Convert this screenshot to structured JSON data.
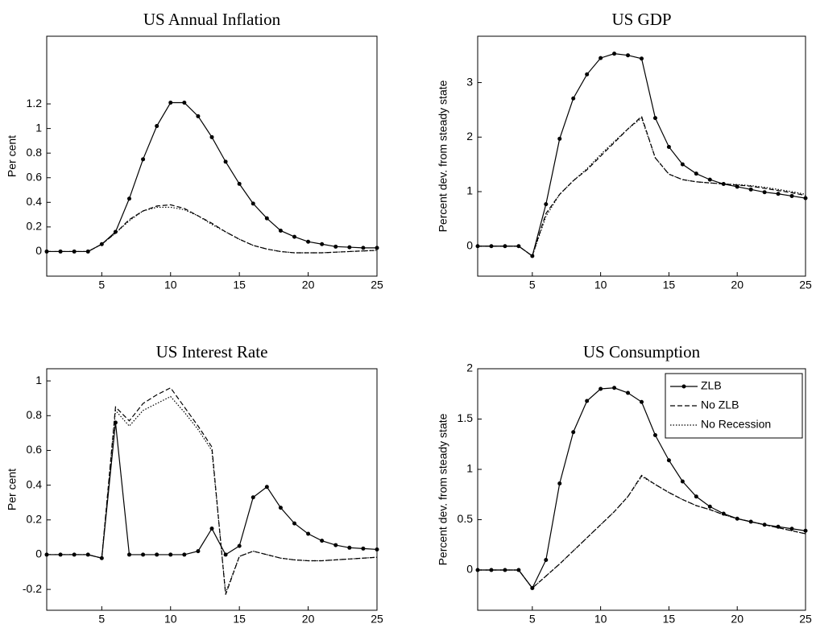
{
  "chart_data": [
    {
      "type": "line",
      "title": "US Annual Inflation",
      "ylabel": "Per cent",
      "x": [
        1,
        2,
        3,
        4,
        5,
        6,
        7,
        8,
        9,
        10,
        11,
        12,
        13,
        14,
        15,
        16,
        17,
        18,
        19,
        20,
        21,
        22,
        23,
        24,
        25
      ],
      "xlim": [
        1,
        25
      ],
      "xticks": [
        5,
        10,
        15,
        20,
        25
      ],
      "ylim": [
        -0.2,
        1.75
      ],
      "yticks": [
        0,
        0.2,
        0.4,
        0.6,
        0.8,
        1,
        1.2
      ],
      "series": [
        {
          "color": "#000000",
          "dash": "solid",
          "marker": true,
          "values": [
            0,
            0,
            0,
            0,
            0.06,
            0.16,
            0.43,
            0.75,
            1.02,
            1.21,
            1.21,
            1.1,
            0.93,
            0.73,
            0.55,
            0.39,
            0.27,
            0.17,
            0.12,
            0.08,
            0.06,
            0.04,
            0.035,
            0.03,
            0.03
          ]
        },
        {
          "color": "#000000",
          "dash": "dashed",
          "marker": false,
          "values": [
            0,
            0,
            0,
            0,
            0.06,
            0.15,
            0.26,
            0.33,
            0.37,
            0.38,
            0.35,
            0.29,
            0.23,
            0.16,
            0.1,
            0.05,
            0.02,
            0,
            -0.01,
            -0.01,
            -0.01,
            -0.005,
            0,
            0.005,
            0.01
          ]
        },
        {
          "color": "#000000",
          "dash": "dotted",
          "marker": false,
          "values": [
            0,
            0,
            0,
            0,
            0.06,
            0.15,
            0.25,
            0.33,
            0.36,
            0.36,
            0.34,
            0.29,
            0.22,
            0.16,
            0.1,
            0.05,
            0.02,
            0,
            -0.01,
            -0.01,
            -0.01,
            -0.005,
            0,
            0.005,
            0.01
          ]
        }
      ]
    },
    {
      "type": "line",
      "title": "US GDP",
      "ylabel": "Percent dev. from steady state",
      "x": [
        1,
        2,
        3,
        4,
        5,
        6,
        7,
        8,
        9,
        10,
        11,
        12,
        13,
        14,
        15,
        16,
        17,
        18,
        19,
        20,
        21,
        22,
        23,
        24,
        25
      ],
      "xlim": [
        1,
        25
      ],
      "xticks": [
        5,
        10,
        15,
        20,
        25
      ],
      "ylim": [
        -0.55,
        3.85
      ],
      "yticks": [
        0,
        1,
        2,
        3
      ],
      "series": [
        {
          "color": "#000000",
          "dash": "solid",
          "marker": true,
          "values": [
            0,
            0,
            0,
            0,
            -0.18,
            0.77,
            1.97,
            2.71,
            3.15,
            3.45,
            3.53,
            3.5,
            3.44,
            2.35,
            1.82,
            1.5,
            1.33,
            1.22,
            1.14,
            1.09,
            1.04,
            0.99,
            0.96,
            0.92,
            0.88
          ]
        },
        {
          "color": "#000000",
          "dash": "dashed",
          "marker": false,
          "values": [
            0,
            0,
            0,
            0,
            -0.18,
            0.6,
            0.95,
            1.2,
            1.4,
            1.65,
            1.9,
            2.15,
            2.38,
            1.62,
            1.32,
            1.22,
            1.18,
            1.16,
            1.14,
            1.12,
            1.1,
            1.06,
            1.02,
            0.98,
            0.93
          ]
        },
        {
          "color": "#000000",
          "dash": "dotted",
          "marker": false,
          "values": [
            0,
            0,
            0,
            0,
            -0.18,
            0.55,
            0.95,
            1.2,
            1.42,
            1.68,
            1.92,
            2.15,
            2.35,
            1.62,
            1.32,
            1.22,
            1.18,
            1.16,
            1.14,
            1.13,
            1.11,
            1.08,
            1.04,
            1,
            0.95
          ]
        }
      ]
    },
    {
      "type": "line",
      "title": "US Interest Rate",
      "ylabel": "Per cent",
      "x": [
        1,
        2,
        3,
        4,
        5,
        6,
        7,
        8,
        9,
        10,
        11,
        12,
        13,
        14,
        15,
        16,
        17,
        18,
        19,
        20,
        21,
        22,
        23,
        24,
        25
      ],
      "xlim": [
        1,
        25
      ],
      "xticks": [
        5,
        10,
        15,
        20,
        25
      ],
      "ylim": [
        -0.32,
        1.07
      ],
      "yticks": [
        -0.2,
        0,
        0.2,
        0.4,
        0.6,
        0.8,
        1
      ],
      "series": [
        {
          "color": "#000000",
          "dash": "solid",
          "marker": true,
          "values": [
            0,
            0,
            0,
            0,
            -0.02,
            0.76,
            0,
            0,
            0,
            0,
            0,
            0.02,
            0.15,
            0,
            0.05,
            0.33,
            0.39,
            0.27,
            0.18,
            0.12,
            0.08,
            0.055,
            0.04,
            0.035,
            0.03
          ]
        },
        {
          "color": "#000000",
          "dash": "dashed",
          "marker": false,
          "values": [
            0,
            0,
            0,
            0,
            -0.02,
            0.85,
            0.77,
            0.87,
            0.92,
            0.96,
            0.85,
            0.74,
            0.62,
            -0.23,
            -0.01,
            0.02,
            0,
            -0.02,
            -0.03,
            -0.035,
            -0.035,
            -0.03,
            -0.025,
            -0.02,
            -0.015
          ]
        },
        {
          "color": "#000000",
          "dash": "dotted",
          "marker": false,
          "values": [
            0,
            0,
            0,
            0,
            -0.02,
            0.83,
            0.74,
            0.83,
            0.87,
            0.91,
            0.82,
            0.72,
            0.6,
            -0.22,
            -0.01,
            0.02,
            0,
            -0.02,
            -0.03,
            -0.035,
            -0.035,
            -0.03,
            -0.025,
            -0.02,
            -0.015
          ]
        }
      ]
    },
    {
      "type": "line",
      "title": "US Consumption",
      "ylabel": "Percent dev. from steady state",
      "legend": "upper right",
      "x": [
        1,
        2,
        3,
        4,
        5,
        6,
        7,
        8,
        9,
        10,
        11,
        12,
        13,
        14,
        15,
        16,
        17,
        18,
        19,
        20,
        21,
        22,
        23,
        24,
        25
      ],
      "xlim": [
        1,
        25
      ],
      "xticks": [
        5,
        10,
        15,
        20,
        25
      ],
      "ylim": [
        -0.4,
        2
      ],
      "yticks": [
        0,
        0.5,
        1,
        1.5,
        2
      ],
      "series": [
        {
          "name": "ZLB",
          "color": "#000000",
          "dash": "solid",
          "marker": true,
          "values": [
            0,
            0,
            0,
            0,
            -0.18,
            0.1,
            0.86,
            1.37,
            1.68,
            1.8,
            1.81,
            1.76,
            1.67,
            1.34,
            1.09,
            0.88,
            0.73,
            0.63,
            0.56,
            0.51,
            0.48,
            0.45,
            0.43,
            0.41,
            0.39
          ]
        },
        {
          "name": "No ZLB",
          "color": "#000000",
          "dash": "dashed",
          "marker": false,
          "values": [
            0,
            0,
            0,
            0,
            -0.18,
            -0.06,
            0.06,
            0.19,
            0.32,
            0.45,
            0.58,
            0.73,
            0.94,
            0.85,
            0.77,
            0.7,
            0.64,
            0.6,
            0.55,
            0.51,
            0.48,
            0.45,
            0.42,
            0.39,
            0.36
          ]
        },
        {
          "name": "No Recession",
          "color": "#000000",
          "dash": "dotted",
          "marker": false,
          "values": [
            0,
            0,
            0,
            0,
            -0.18,
            -0.06,
            0.06,
            0.19,
            0.32,
            0.45,
            0.58,
            0.73,
            0.93,
            0.85,
            0.77,
            0.7,
            0.64,
            0.6,
            0.55,
            0.51,
            0.48,
            0.45,
            0.42,
            0.39,
            0.36
          ]
        }
      ]
    }
  ]
}
